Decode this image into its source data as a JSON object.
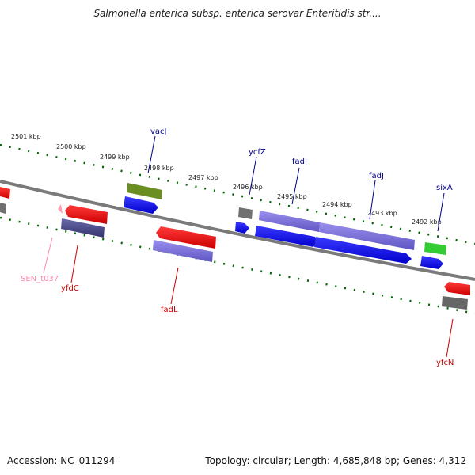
{
  "title": "Salmonella enterica subsp. enterica serovar Enteritidis str....",
  "footer": {
    "accession": "Accession: NC_011294",
    "summary": "Topology: circular; Length: 4,685,848 bp; Genes: 4,312"
  },
  "ticks": [
    "2501 kbp",
    "2500 kbp",
    "2499 kbp",
    "2498 kbp",
    "2497 kbp",
    "2496 kbp",
    "2495 kbp",
    "2494 kbp",
    "2493 kbp",
    "2492 kbp"
  ],
  "genes": [
    {
      "name": "vacJ",
      "color": "#00008b"
    },
    {
      "name": "ycfZ",
      "color": "#00008b"
    },
    {
      "name": "fadI",
      "color": "#00008b"
    },
    {
      "name": "fadJ",
      "color": "#00008b"
    },
    {
      "name": "sixA",
      "color": "#00008b"
    },
    {
      "name": "SEN_t037",
      "color": "#ff88aa"
    },
    {
      "name": "yfdC",
      "color": "#cc0000"
    },
    {
      "name": "fadL",
      "color": "#cc0000"
    },
    {
      "name": "yfcN",
      "color": "#cc0000"
    }
  ],
  "colors": {
    "forward_cds": "#0000ee",
    "reverse_cds": "#ee0000",
    "forward_gene": "#7a6fd6",
    "reverse_gene": "#4a4a8a",
    "rna": "#6b8e23",
    "pseudo": "#707070",
    "green_feature": "#33cc33",
    "tick_color": "#006400",
    "backbone": "#808080"
  }
}
